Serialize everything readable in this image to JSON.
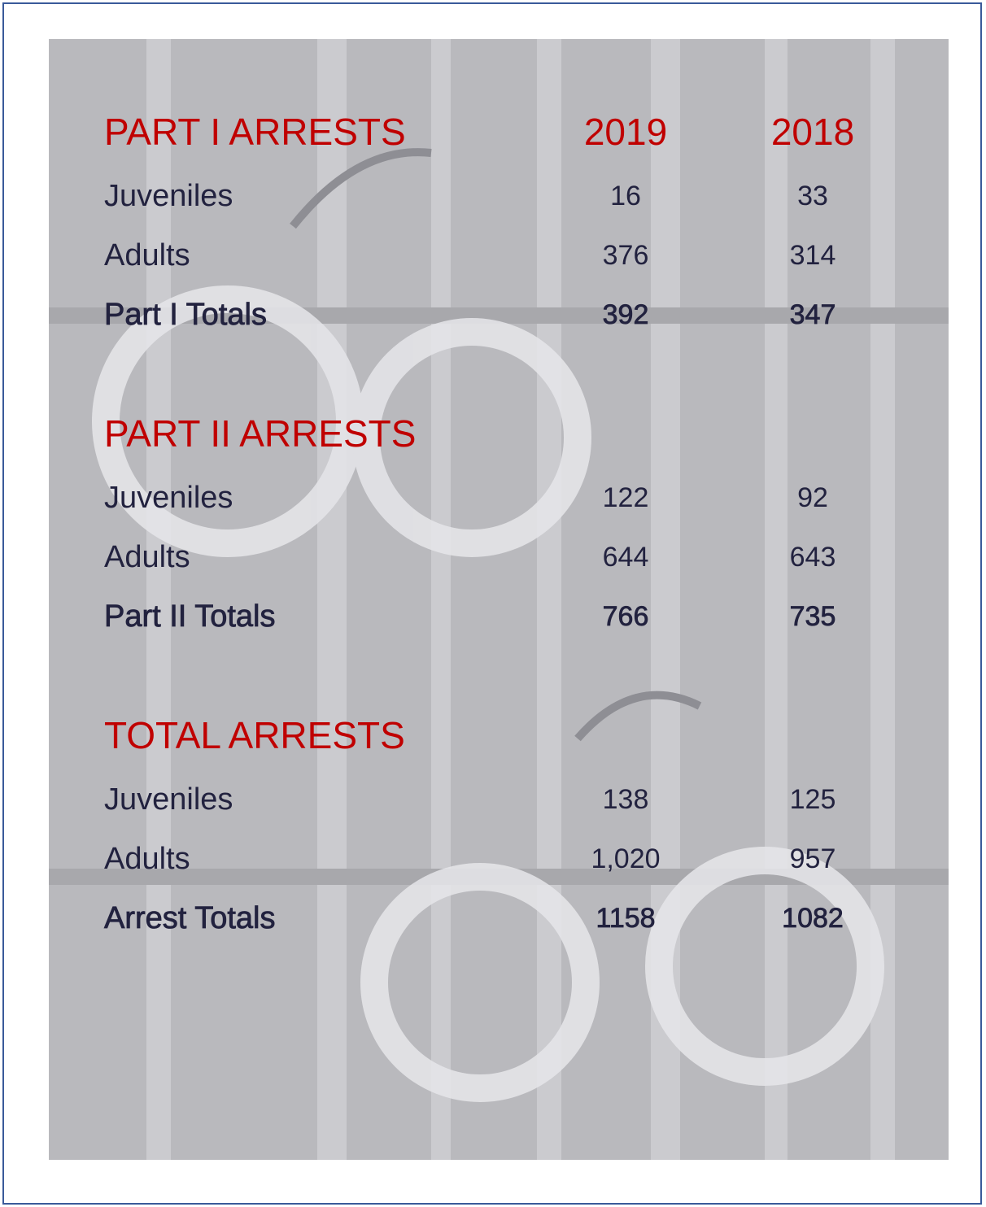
{
  "columns": [
    "2019",
    "2018"
  ],
  "sections": [
    {
      "heading": "PART I ARRESTS",
      "rows": [
        [
          "Juveniles",
          "16",
          "33"
        ],
        [
          "Adults",
          "376",
          "314"
        ],
        [
          "Part I Totals",
          "392",
          "347"
        ]
      ]
    },
    {
      "heading": "PART II ARRESTS",
      "rows": [
        [
          "Juveniles",
          "122",
          "92"
        ],
        [
          "Adults",
          "644",
          "643"
        ],
        [
          "Part II Totals",
          "766",
          "735"
        ]
      ]
    },
    {
      "heading": "TOTAL ARRESTS",
      "rows": [
        [
          "Juveniles",
          "138",
          "125"
        ],
        [
          "Adults",
          "1,020",
          "957"
        ],
        [
          "Arrest Totals",
          "1158",
          "1082"
        ]
      ]
    }
  ]
}
